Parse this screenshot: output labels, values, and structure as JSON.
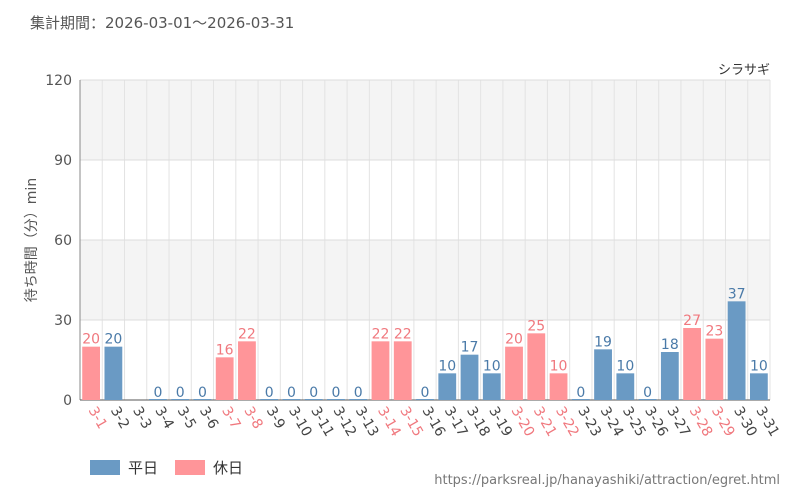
{
  "header": {
    "period": "集計期間：2026-03-01～2026-03-31"
  },
  "footer": {
    "source_url": "https://parksreal.jp/hanayashiki/attraction/egret.html"
  },
  "colors": {
    "weekday": "#6a9ac4",
    "holiday": "#ff9599",
    "weekday_text": "#4a7aa8",
    "holiday_text": "#f0787e",
    "axis_text": "#555555"
  },
  "chart_data": {
    "type": "bar",
    "title": "シラサギ",
    "ylabel": "待ち時間（分）min",
    "ylim": [
      0,
      120
    ],
    "yticks": [
      0,
      30,
      60,
      90,
      120
    ],
    "grid": true,
    "legend_position": "bottom-left",
    "legend": [
      {
        "key": "weekday",
        "label": "平日"
      },
      {
        "key": "holiday",
        "label": "休日"
      }
    ],
    "categories": [
      "3-1",
      "3-2",
      "3-3",
      "3-4",
      "3-5",
      "3-6",
      "3-7",
      "3-8",
      "3-9",
      "3-10",
      "3-11",
      "3-12",
      "3-13",
      "3-14",
      "3-15",
      "3-16",
      "3-17",
      "3-18",
      "3-19",
      "3-20",
      "3-21",
      "3-22",
      "3-23",
      "3-24",
      "3-25",
      "3-26",
      "3-27",
      "3-28",
      "3-29",
      "3-30",
      "3-31"
    ],
    "values": [
      20,
      20,
      null,
      0,
      0,
      0,
      16,
      22,
      0,
      0,
      0,
      0,
      0,
      22,
      22,
      0,
      10,
      17,
      10,
      20,
      25,
      10,
      0,
      19,
      10,
      0,
      18,
      27,
      23,
      37,
      10
    ],
    "day_type": [
      "holiday",
      "weekday",
      "weekday",
      "weekday",
      "weekday",
      "weekday",
      "holiday",
      "holiday",
      "weekday",
      "weekday",
      "weekday",
      "weekday",
      "weekday",
      "holiday",
      "holiday",
      "weekday",
      "weekday",
      "weekday",
      "weekday",
      "holiday",
      "holiday",
      "holiday",
      "weekday",
      "weekday",
      "weekday",
      "weekday",
      "weekday",
      "holiday",
      "holiday",
      "weekday",
      "weekday"
    ]
  }
}
